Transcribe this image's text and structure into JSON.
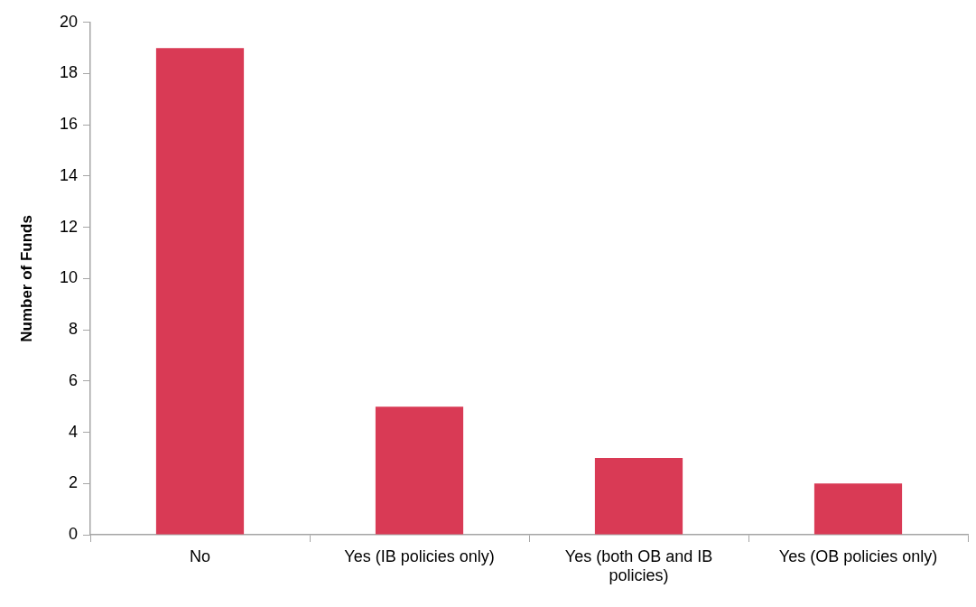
{
  "chart_data": {
    "type": "bar",
    "ylabel": "Number of Funds",
    "categories": [
      "No",
      "Yes (IB policies only)",
      "Yes (both OB and IB policies)",
      "Yes (OB policies only)"
    ],
    "values": [
      19,
      5,
      3,
      2
    ],
    "color": "#d93a55",
    "ylim": [
      0,
      20
    ],
    "yticks": [
      0,
      2,
      4,
      6,
      8,
      10,
      12,
      14,
      16,
      18,
      20
    ],
    "grid": false,
    "legend": false
  }
}
